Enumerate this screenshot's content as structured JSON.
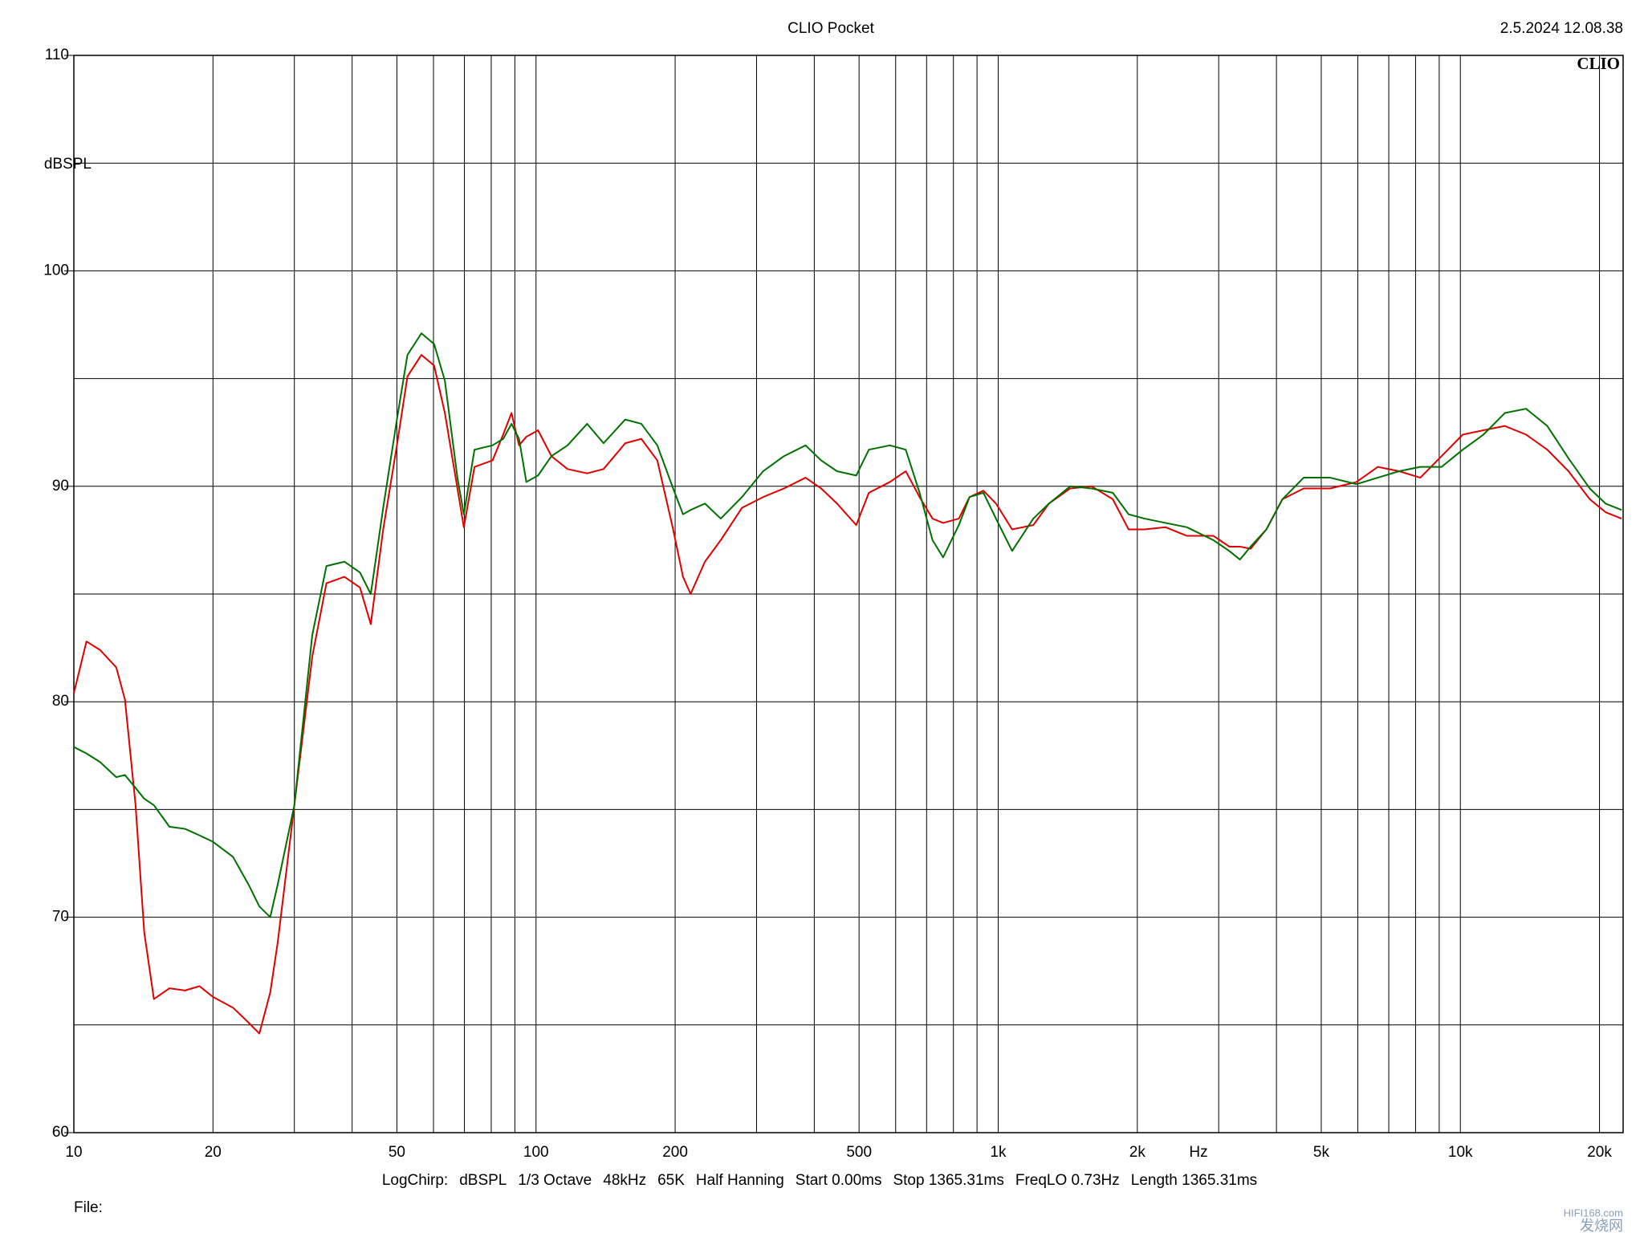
{
  "chart_data": {
    "type": "line",
    "title": "CLIO Pocket",
    "timestamp": "2.5.2024 12.08.38",
    "logo": "CLIO",
    "ylabel": "dBSPL",
    "xlabel": "Hz",
    "footer": [
      "LogChirp:",
      "dBSPL",
      "1/3 Octave",
      "48kHz",
      "65K",
      "Half Hanning",
      "Start 0.00ms",
      "Stop 1365.31ms",
      "FreqLO 0.73Hz",
      "Length 1365.31ms"
    ],
    "file_label": "File:",
    "watermark": [
      "HIFI168.com",
      "发烧网"
    ],
    "xscale": "log",
    "grid": true,
    "xlim": [
      10,
      22500
    ],
    "ylim": [
      60,
      110
    ],
    "xticks": [
      10,
      20,
      50,
      100,
      200,
      500,
      {
        "value": 1000,
        "label": "1k"
      },
      {
        "value": 2000,
        "label": "2k"
      },
      {
        "value": 5000,
        "label": "5k"
      },
      {
        "value": 10000,
        "label": "10k"
      },
      {
        "value": 20000,
        "label": "20k"
      }
    ],
    "minor_xticks": [
      30,
      40,
      60,
      70,
      80,
      90,
      300,
      400,
      600,
      700,
      800,
      900,
      3000,
      4000,
      6000,
      7000,
      8000,
      9000
    ],
    "yticks": [
      60,
      70,
      80,
      90,
      100,
      110
    ],
    "minor_yticks": [
      65,
      75,
      85,
      95,
      105
    ],
    "x": [
      10,
      10.65,
      11.4,
      12.35,
      12.9,
      13.6,
      14.2,
      14.9,
      16.1,
      17.4,
      18.7,
      20,
      22.1,
      23.9,
      25.2,
      26.6,
      27.6,
      30,
      32.8,
      35.2,
      38.5,
      41.6,
      43.9,
      46.7,
      50,
      52.7,
      56.5,
      60.2,
      63.5,
      67.6,
      69.8,
      73.6,
      80.5,
      84.9,
      88.5,
      91.9,
      95.3,
      101,
      108,
      117,
      129,
      140,
      156,
      169,
      183,
      198,
      208,
      216,
      232,
      251,
      279,
      310,
      344,
      383,
      414,
      448,
      493,
      525,
      583,
      631,
      676,
      721,
      760,
      822,
      867,
      929,
      989,
      1072,
      1191,
      1288,
      1432,
      1592,
      1770,
      1915,
      2074,
      2303,
      2560,
      2922,
      3162,
      3335,
      3517,
      3805,
      4121,
      4581,
      5228,
      5960,
      6627,
      7368,
      8192,
      9107,
      10120,
      11220,
      12480,
      13870,
      15420,
      17140,
      19050,
      20610,
      22330
    ],
    "series": [
      {
        "color": "#e00000",
        "values": [
          80.4,
          82.8,
          82.4,
          81.6,
          80.1,
          75.2,
          69.3,
          66.2,
          66.7,
          66.6,
          66.8,
          66.3,
          65.8,
          65.1,
          64.6,
          66.5,
          68.8,
          75.2,
          82.1,
          85.5,
          85.8,
          85.3,
          83.6,
          88.0,
          91.9,
          95.1,
          96.1,
          95.6,
          93.4,
          89.9,
          88.1,
          90.9,
          91.2,
          92.4,
          93.4,
          91.9,
          92.3,
          92.6,
          91.4,
          90.8,
          90.6,
          90.8,
          92.0,
          92.2,
          91.2,
          88.0,
          85.8,
          85.0,
          86.5,
          87.5,
          89.0,
          89.5,
          89.9,
          90.4,
          89.9,
          89.2,
          88.2,
          89.7,
          90.2,
          90.7,
          89.5,
          88.5,
          88.3,
          88.5,
          89.5,
          89.8,
          89.2,
          88.0,
          88.2,
          89.2,
          89.9,
          90.0,
          89.4,
          88.0,
          88.0,
          88.1,
          87.7,
          87.7,
          87.2,
          87.2,
          87.1,
          88.0,
          89.4,
          89.9,
          89.9,
          90.2,
          90.9,
          90.7,
          90.4,
          91.4,
          92.4,
          92.6,
          92.8,
          92.4,
          91.7,
          90.7,
          89.4,
          88.8,
          88.5
        ]
      },
      {
        "color": "#007000",
        "values": [
          77.9,
          77.6,
          77.2,
          76.5,
          76.6,
          76.0,
          75.5,
          75.2,
          74.2,
          74.1,
          73.8,
          73.5,
          72.8,
          71.5,
          70.5,
          70.0,
          71.5,
          75.2,
          83.1,
          86.3,
          86.5,
          86.0,
          85.0,
          89.0,
          93.1,
          96.1,
          97.1,
          96.6,
          94.9,
          90.4,
          88.7,
          91.7,
          91.9,
          92.2,
          92.9,
          92.2,
          90.2,
          90.5,
          91.4,
          91.9,
          92.9,
          92.0,
          93.1,
          92.9,
          91.9,
          89.9,
          88.7,
          88.9,
          89.2,
          88.5,
          89.5,
          90.7,
          91.4,
          91.9,
          91.2,
          90.7,
          90.5,
          91.7,
          91.9,
          91.7,
          89.7,
          87.5,
          86.7,
          88.2,
          89.5,
          89.7,
          88.5,
          87.0,
          88.5,
          89.2,
          90.0,
          89.9,
          89.7,
          88.7,
          88.5,
          88.3,
          88.1,
          87.5,
          87.0,
          86.6,
          87.2,
          88.0,
          89.4,
          90.4,
          90.4,
          90.1,
          90.4,
          90.7,
          90.9,
          90.9,
          91.7,
          92.4,
          93.4,
          93.6,
          92.8,
          91.3,
          89.9,
          89.2,
          88.9
        ]
      }
    ]
  }
}
